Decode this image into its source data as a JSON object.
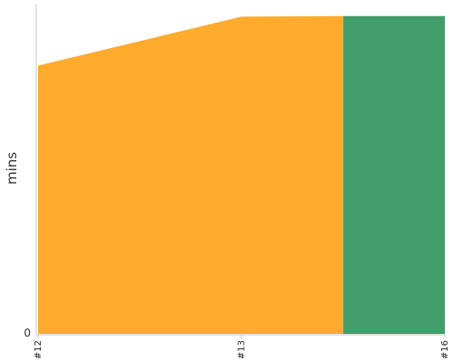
{
  "chart_data": {
    "type": "area",
    "ylabel": "mins",
    "x_labels": [
      "#12",
      "#13",
      "#16"
    ],
    "x": [
      0,
      1,
      2
    ],
    "ylim": [
      0,
      56
    ],
    "y_ticks": [
      0
    ],
    "series": [
      {
        "points": [
          [
            0,
            45.5
          ],
          [
            1,
            53.8
          ],
          [
            1.5,
            53.9
          ]
        ],
        "color": "#ffab2e"
      },
      {
        "points": [
          [
            1.5,
            53.9
          ],
          [
            2,
            53.9
          ]
        ],
        "color": "#429d6b"
      }
    ],
    "grid": false,
    "legend": "none"
  }
}
